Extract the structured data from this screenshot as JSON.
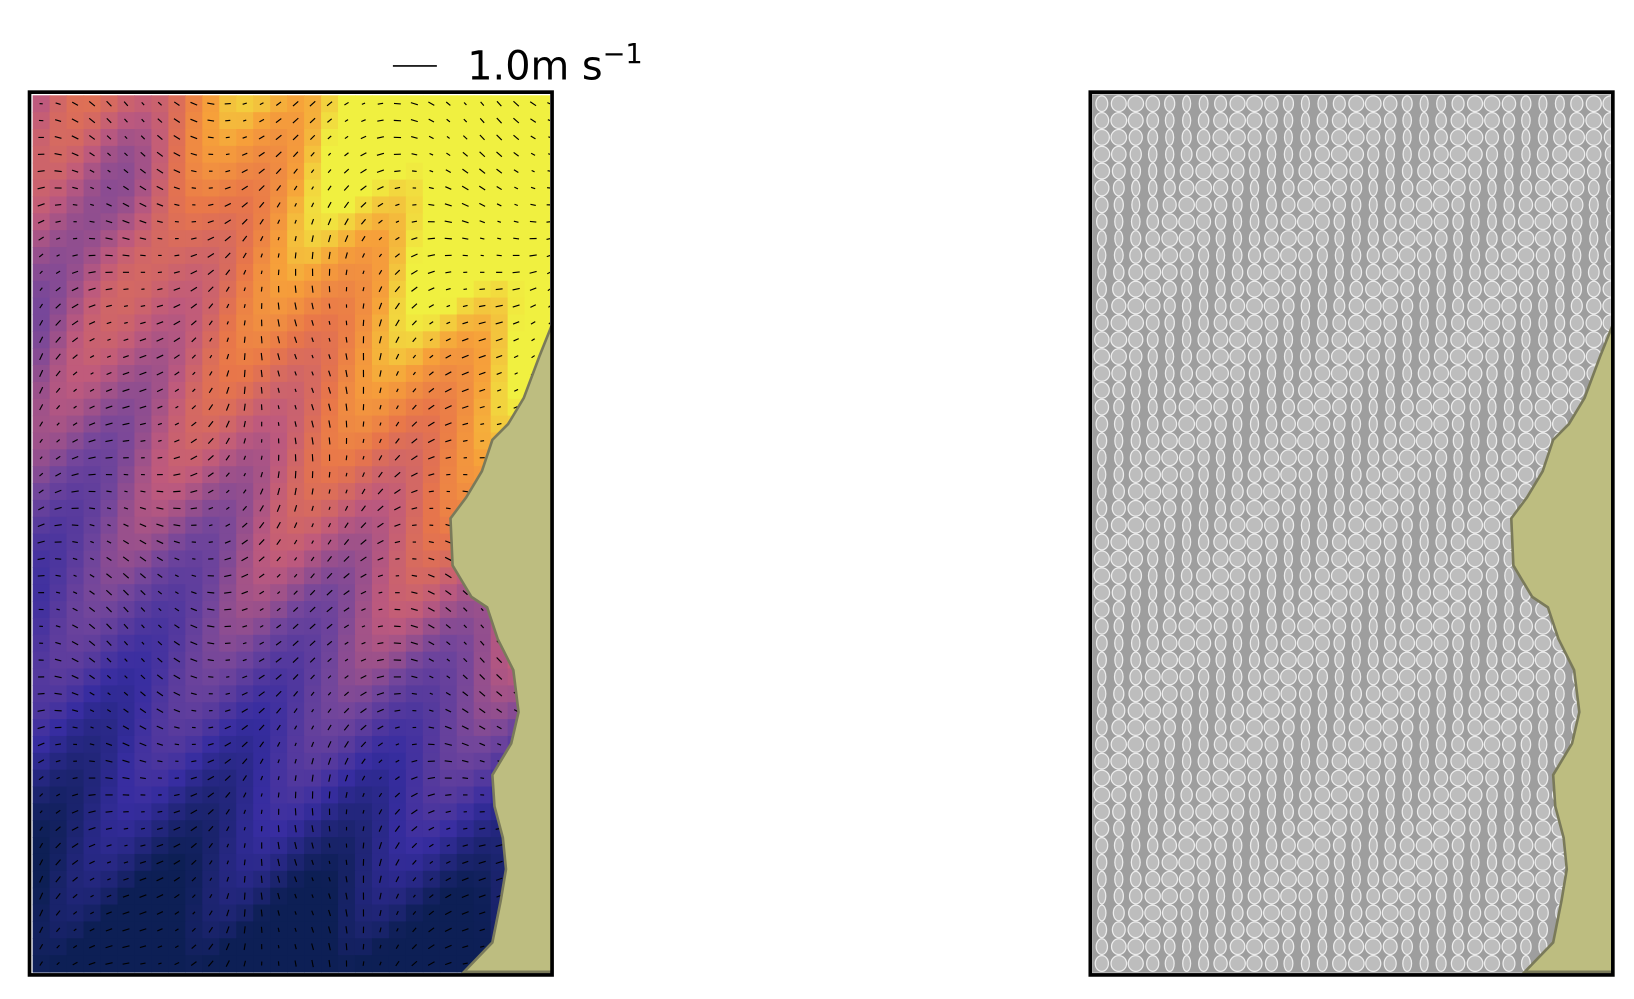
{
  "quiver_key": {
    "label": "1.0m s",
    "exponent": "−1"
  }
}
